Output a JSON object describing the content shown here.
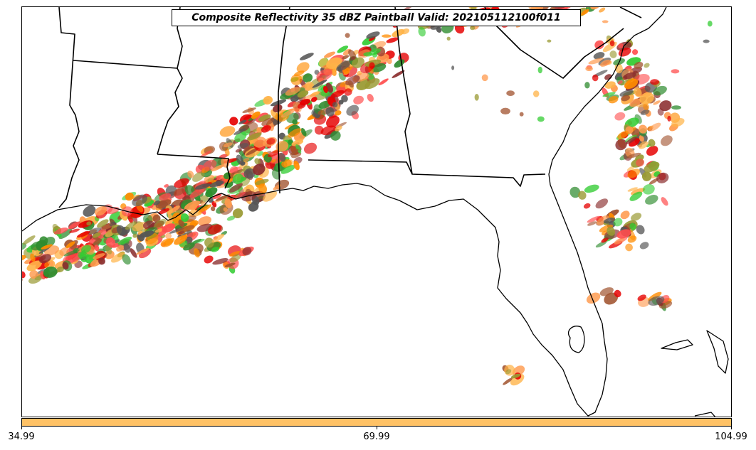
{
  "title": "Composite Reflectivity 35 dBZ Paintball Valid: 202105112100f011",
  "colorbar": {
    "color": "#ffc266",
    "tick_labels": [
      "34.99",
      "69.99",
      "104.99"
    ]
  },
  "paintball_colors": [
    "#e60000",
    "#ff4d4d",
    "#ff8c00",
    "#ff9a4d",
    "#ffb347",
    "#33cc33",
    "#2e8b2e",
    "#8b2e2e",
    "#9a9a33",
    "#555555",
    "#a0522d"
  ],
  "map_layers": [
    "state-boundaries",
    "coastline",
    "radar-paintball-echoes"
  ]
}
